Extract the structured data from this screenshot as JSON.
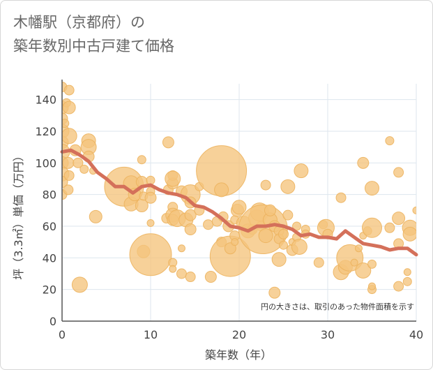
{
  "title_line1": "木幡駅（京都府）の",
  "title_line2": "築年数別中古戸建て価格",
  "colors": {
    "bubble": "#f5c47c",
    "bubble_stroke": "#ecb25e",
    "line": "#d4705a",
    "grid": "#dde6ee",
    "frame": "#d6d6d6"
  },
  "chart_data": {
    "type": "scatter",
    "xlabel": "築年数（年）",
    "ylabel": "坪（3.3㎡）単価（万円）",
    "xlim": [
      0,
      40
    ],
    "ylim": [
      0,
      150
    ],
    "xticks": [
      0,
      10,
      20,
      30,
      40
    ],
    "yticks": [
      0,
      20,
      40,
      60,
      80,
      100,
      120,
      140
    ],
    "grid": true,
    "annotation": "円の大きさは、取引のあった物件面積を示す",
    "bubbles": [
      {
        "x": 0,
        "y": 148,
        "r": 7
      },
      {
        "x": 0,
        "y": 135,
        "r": 9
      },
      {
        "x": 0,
        "y": 128,
        "r": 8
      },
      {
        "x": 0,
        "y": 120,
        "r": 10
      },
      {
        "x": 0,
        "y": 113,
        "r": 9
      },
      {
        "x": 0,
        "y": 107,
        "r": 11
      },
      {
        "x": 0,
        "y": 100,
        "r": 9
      },
      {
        "x": 0,
        "y": 93,
        "r": 10
      },
      {
        "x": 0,
        "y": 88,
        "r": 8
      },
      {
        "x": 0,
        "y": 80,
        "r": 7
      },
      {
        "x": 0.3,
        "y": 125,
        "r": 6
      },
      {
        "x": 0.5,
        "y": 138,
        "r": 6
      },
      {
        "x": 0.8,
        "y": 146,
        "r": 7
      },
      {
        "x": 0.8,
        "y": 135,
        "r": 9
      },
      {
        "x": 0.8,
        "y": 117,
        "r": 11
      },
      {
        "x": 0.7,
        "y": 100,
        "r": 8
      },
      {
        "x": 0.8,
        "y": 92,
        "r": 7
      },
      {
        "x": 0.7,
        "y": 83,
        "r": 7
      },
      {
        "x": 1.5,
        "y": 108,
        "r": 8
      },
      {
        "x": 1.8,
        "y": 100,
        "r": 7
      },
      {
        "x": 3,
        "y": 114,
        "r": 10
      },
      {
        "x": 3,
        "y": 110,
        "r": 11
      },
      {
        "x": 3,
        "y": 104,
        "r": 8
      },
      {
        "x": 2.5,
        "y": 96,
        "r": 6
      },
      {
        "x": 3.5,
        "y": 95,
        "r": 5
      },
      {
        "x": 2,
        "y": 23,
        "r": 11
      },
      {
        "x": 3.8,
        "y": 66,
        "r": 9
      },
      {
        "x": 7,
        "y": 85,
        "r": 28
      },
      {
        "x": 7.8,
        "y": 87,
        "r": 11
      },
      {
        "x": 7.8,
        "y": 74,
        "r": 10
      },
      {
        "x": 8.2,
        "y": 80,
        "r": 9
      },
      {
        "x": 9,
        "y": 102,
        "r": 6
      },
      {
        "x": 9,
        "y": 88,
        "r": 8
      },
      {
        "x": 9,
        "y": 73,
        "r": 9
      },
      {
        "x": 9.2,
        "y": 79,
        "r": 6
      },
      {
        "x": 9.2,
        "y": 44,
        "r": 9
      },
      {
        "x": 10,
        "y": 42,
        "r": 30
      },
      {
        "x": 10,
        "y": 89,
        "r": 6
      },
      {
        "x": 10,
        "y": 82,
        "r": 6
      },
      {
        "x": 10,
        "y": 62,
        "r": 5
      },
      {
        "x": 10,
        "y": 78,
        "r": 8
      },
      {
        "x": 11.8,
        "y": 65,
        "r": 7
      },
      {
        "x": 12,
        "y": 113,
        "r": 8
      },
      {
        "x": 12,
        "y": 83,
        "r": 7
      },
      {
        "x": 12.5,
        "y": 87,
        "r": 8
      },
      {
        "x": 12.5,
        "y": 92,
        "r": 7
      },
      {
        "x": 12.5,
        "y": 90,
        "r": 11
      },
      {
        "x": 12.5,
        "y": 72,
        "r": 7
      },
      {
        "x": 12.5,
        "y": 67,
        "r": 10
      },
      {
        "x": 12.5,
        "y": 64,
        "r": 8
      },
      {
        "x": 12.5,
        "y": 37,
        "r": 6
      },
      {
        "x": 12.5,
        "y": 33,
        "r": 5
      },
      {
        "x": 13,
        "y": 65,
        "r": 12
      },
      {
        "x": 13.5,
        "y": 82,
        "r": 8
      },
      {
        "x": 13.5,
        "y": 46,
        "r": 5
      },
      {
        "x": 13.5,
        "y": 30,
        "r": 7
      },
      {
        "x": 14,
        "y": 64,
        "r": 10
      },
      {
        "x": 14.5,
        "y": 80,
        "r": 14
      },
      {
        "x": 14.5,
        "y": 75,
        "r": 8
      },
      {
        "x": 14.5,
        "y": 67,
        "r": 8
      },
      {
        "x": 14.5,
        "y": 58,
        "r": 8
      },
      {
        "x": 14.5,
        "y": 28,
        "r": 7
      },
      {
        "x": 15.5,
        "y": 70,
        "r": 7
      },
      {
        "x": 15.5,
        "y": 85,
        "r": 6
      },
      {
        "x": 16.5,
        "y": 61,
        "r": 7
      },
      {
        "x": 16.8,
        "y": 28,
        "r": 8
      },
      {
        "x": 17.5,
        "y": 63,
        "r": 7
      },
      {
        "x": 18,
        "y": 95,
        "r": 36
      },
      {
        "x": 18,
        "y": 83,
        "r": 10
      },
      {
        "x": 18,
        "y": 50,
        "r": 7
      },
      {
        "x": 18.2,
        "y": 66,
        "r": 7
      },
      {
        "x": 18.8,
        "y": 60,
        "r": 8
      },
      {
        "x": 19,
        "y": 41,
        "r": 29
      },
      {
        "x": 19,
        "y": 46,
        "r": 8
      },
      {
        "x": 19.5,
        "y": 64,
        "r": 6
      },
      {
        "x": 19.5,
        "y": 54,
        "r": 7
      },
      {
        "x": 19.5,
        "y": 50,
        "r": 5
      },
      {
        "x": 19.8,
        "y": 70,
        "r": 9
      },
      {
        "x": 20,
        "y": 72,
        "r": 10
      },
      {
        "x": 20.5,
        "y": 62,
        "r": 10
      },
      {
        "x": 21,
        "y": 57,
        "r": 10
      },
      {
        "x": 21.5,
        "y": 58,
        "r": 7
      },
      {
        "x": 22,
        "y": 65,
        "r": 12
      },
      {
        "x": 22.3,
        "y": 69,
        "r": 13
      },
      {
        "x": 22.5,
        "y": 60,
        "r": 7
      },
      {
        "x": 22.7,
        "y": 58,
        "r": 35
      },
      {
        "x": 23,
        "y": 86,
        "r": 7
      },
      {
        "x": 23.5,
        "y": 64,
        "r": 10
      },
      {
        "x": 23,
        "y": 54,
        "r": 10
      },
      {
        "x": 23.5,
        "y": 70,
        "r": 8
      },
      {
        "x": 24,
        "y": 60,
        "r": 8
      },
      {
        "x": 24,
        "y": 18,
        "r": 8
      },
      {
        "x": 24.5,
        "y": 57,
        "r": 7
      },
      {
        "x": 24.5,
        "y": 52,
        "r": 7
      },
      {
        "x": 24.5,
        "y": 39,
        "r": 10
      },
      {
        "x": 25,
        "y": 55,
        "r": 7
      },
      {
        "x": 25,
        "y": 48,
        "r": 6
      },
      {
        "x": 25.5,
        "y": 85,
        "r": 10
      },
      {
        "x": 25.5,
        "y": 67,
        "r": 7
      },
      {
        "x": 26,
        "y": 45,
        "r": 8
      },
      {
        "x": 26,
        "y": 50,
        "r": 5
      },
      {
        "x": 26.5,
        "y": 60,
        "r": 6
      },
      {
        "x": 26.5,
        "y": 53,
        "r": 6
      },
      {
        "x": 26.8,
        "y": 47,
        "r": 11
      },
      {
        "x": 27,
        "y": 95,
        "r": 10
      },
      {
        "x": 27.5,
        "y": 58,
        "r": 6
      },
      {
        "x": 27.5,
        "y": 55,
        "r": 6
      },
      {
        "x": 29,
        "y": 37,
        "r": 7
      },
      {
        "x": 29.5,
        "y": 61,
        "r": 6
      },
      {
        "x": 29.8,
        "y": 59,
        "r": 12
      },
      {
        "x": 30,
        "y": 55,
        "r": 7
      },
      {
        "x": 31.5,
        "y": 78,
        "r": 7
      },
      {
        "x": 31.5,
        "y": 31,
        "r": 11
      },
      {
        "x": 32,
        "y": 34,
        "r": 10
      },
      {
        "x": 32.5,
        "y": 40,
        "r": 19
      },
      {
        "x": 33,
        "y": 37,
        "r": 5
      },
      {
        "x": 33.5,
        "y": 46,
        "r": 5
      },
      {
        "x": 34,
        "y": 100,
        "r": 8
      },
      {
        "x": 34,
        "y": 54,
        "r": 5
      },
      {
        "x": 34,
        "y": 32,
        "r": 11
      },
      {
        "x": 34.5,
        "y": 57,
        "r": 6
      },
      {
        "x": 35,
        "y": 84,
        "r": 10
      },
      {
        "x": 35,
        "y": 59,
        "r": 14
      },
      {
        "x": 35,
        "y": 36,
        "r": 6
      },
      {
        "x": 35,
        "y": 20,
        "r": 6
      },
      {
        "x": 35,
        "y": 22,
        "r": 5
      },
      {
        "x": 37,
        "y": 114,
        "r": 6
      },
      {
        "x": 37,
        "y": 59,
        "r": 7
      },
      {
        "x": 38,
        "y": 94,
        "r": 7
      },
      {
        "x": 38,
        "y": 65,
        "r": 9
      },
      {
        "x": 38,
        "y": 49,
        "r": 7
      },
      {
        "x": 38,
        "y": 22,
        "r": 7
      },
      {
        "x": 39,
        "y": 31,
        "r": 5
      },
      {
        "x": 39,
        "y": 25,
        "r": 6
      },
      {
        "x": 39.3,
        "y": 59,
        "r": 11
      },
      {
        "x": 39.3,
        "y": 55,
        "r": 10
      },
      {
        "x": 40,
        "y": 70,
        "r": 5
      }
    ],
    "series": [
      {
        "x": [
          0,
          1,
          2,
          3,
          4,
          5,
          6,
          7,
          8,
          9,
          10,
          11,
          12,
          13,
          14,
          15,
          16,
          17,
          18,
          19,
          20,
          21,
          22,
          23,
          24,
          25,
          26,
          27,
          28,
          29,
          30,
          31,
          32,
          33,
          34,
          35,
          36,
          37,
          38,
          39,
          40
        ],
        "values": [
          107,
          108,
          105,
          101,
          94,
          90,
          85,
          85,
          81,
          85,
          86,
          83,
          81,
          80,
          78,
          73,
          72,
          69,
          65,
          60,
          59,
          57,
          60,
          60,
          61,
          60,
          58,
          54,
          55,
          53,
          53,
          52,
          57,
          53,
          49,
          48,
          47,
          45,
          46,
          46,
          42
        ]
      }
    ]
  }
}
